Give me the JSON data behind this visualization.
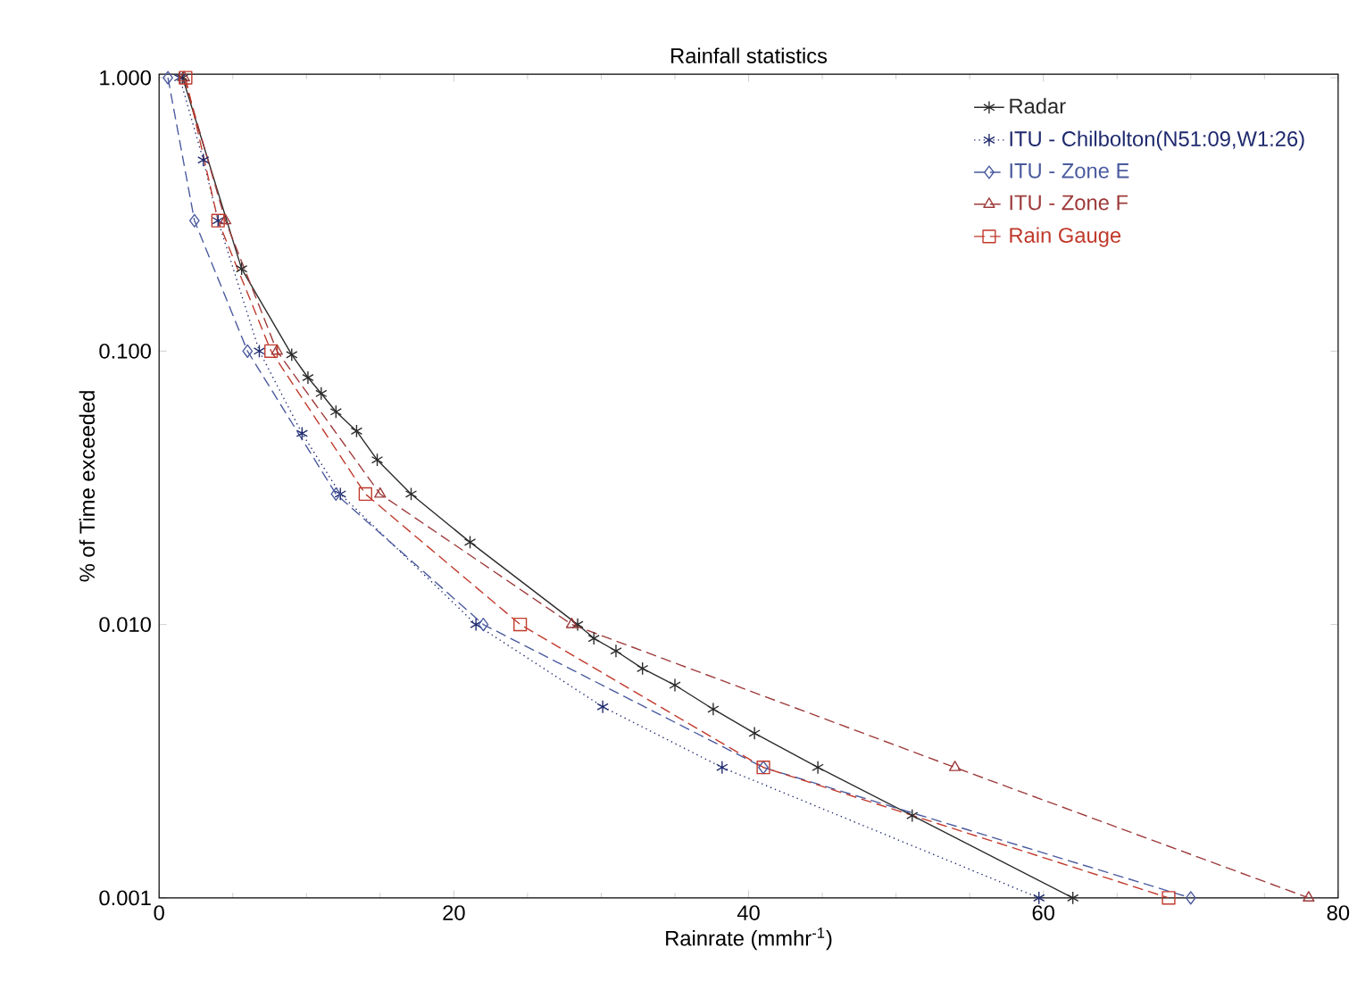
{
  "chart_data": {
    "type": "line",
    "title": "Rainfall statistics",
    "xlabel": "Rainrate (mmhr$^{-1}$)",
    "ylabel": "% of Time exceeded",
    "log": "y",
    "xlim": [
      0,
      80
    ],
    "xticks": [
      0,
      20,
      40,
      60,
      80
    ],
    "ylim": [
      0.001,
      1.03
    ],
    "yticks": [
      {
        "value": 0.001,
        "label": "0.001"
      },
      {
        "value": 0.01,
        "label": "0.010"
      },
      {
        "value": 0.1,
        "label": "0.100"
      },
      {
        "value": 1,
        "label": "1.000"
      }
    ],
    "grid": false,
    "legend": "top right",
    "series": [
      {
        "name": "Radar",
        "color": "#2b2b2b",
        "line_style": "solid",
        "marker": "cross",
        "x": [
          1.6,
          5.6,
          9.0,
          10.1,
          11.0,
          12.0,
          13.4,
          14.8,
          17.1,
          21.1,
          28.4,
          29.5,
          31.0,
          32.8,
          35.0,
          37.6,
          40.4,
          44.7,
          51.1,
          62
        ],
        "values": [
          1,
          0.2,
          0.097,
          0.08,
          0.07,
          0.06,
          0.051,
          0.04,
          0.03,
          0.02,
          0.01,
          0.0089,
          0.008,
          0.0069,
          0.006,
          0.0049,
          0.004,
          0.003,
          0.002,
          0.001
        ]
      },
      {
        "name": "ITU - Chilbolton(N51:09,W1:26)",
        "color": "#1f2a6e",
        "line_style": "dotted",
        "marker": "cross",
        "x": [
          1.4,
          3.0,
          4.0,
          6.8,
          9.7,
          12.3,
          21.5,
          30.1,
          38.2,
          59.7
        ],
        "values": [
          1,
          0.5,
          0.3,
          0.1,
          0.05,
          0.03,
          0.01,
          0.005,
          0.003,
          0.001
        ]
      },
      {
        "name": "ITU - Zone E",
        "color": "#4a5a9e",
        "line_style": "dashed",
        "marker": "diamond",
        "x": [
          0.6,
          2.4,
          6,
          12,
          22,
          41,
          70
        ],
        "values": [
          1,
          0.3,
          0.1,
          0.03,
          0.01,
          0.003,
          0.001
        ]
      },
      {
        "name": "ITU - Zone F",
        "color": "#9e3a3a",
        "line_style": "dashed",
        "marker": "triangle",
        "x": [
          1.7,
          4.5,
          8,
          15,
          28,
          54,
          78
        ],
        "values": [
          1,
          0.3,
          0.1,
          0.03,
          0.01,
          0.003,
          0.001
        ]
      },
      {
        "name": "Rain Gauge",
        "color": "#c0392b",
        "line_style": "dashed",
        "marker": "square",
        "x": [
          1.8,
          4.0,
          7.6,
          14,
          24.5,
          41.0,
          68.5
        ],
        "values": [
          1,
          0.3,
          0.1,
          0.03,
          0.01,
          0.003,
          0.001
        ]
      }
    ]
  }
}
